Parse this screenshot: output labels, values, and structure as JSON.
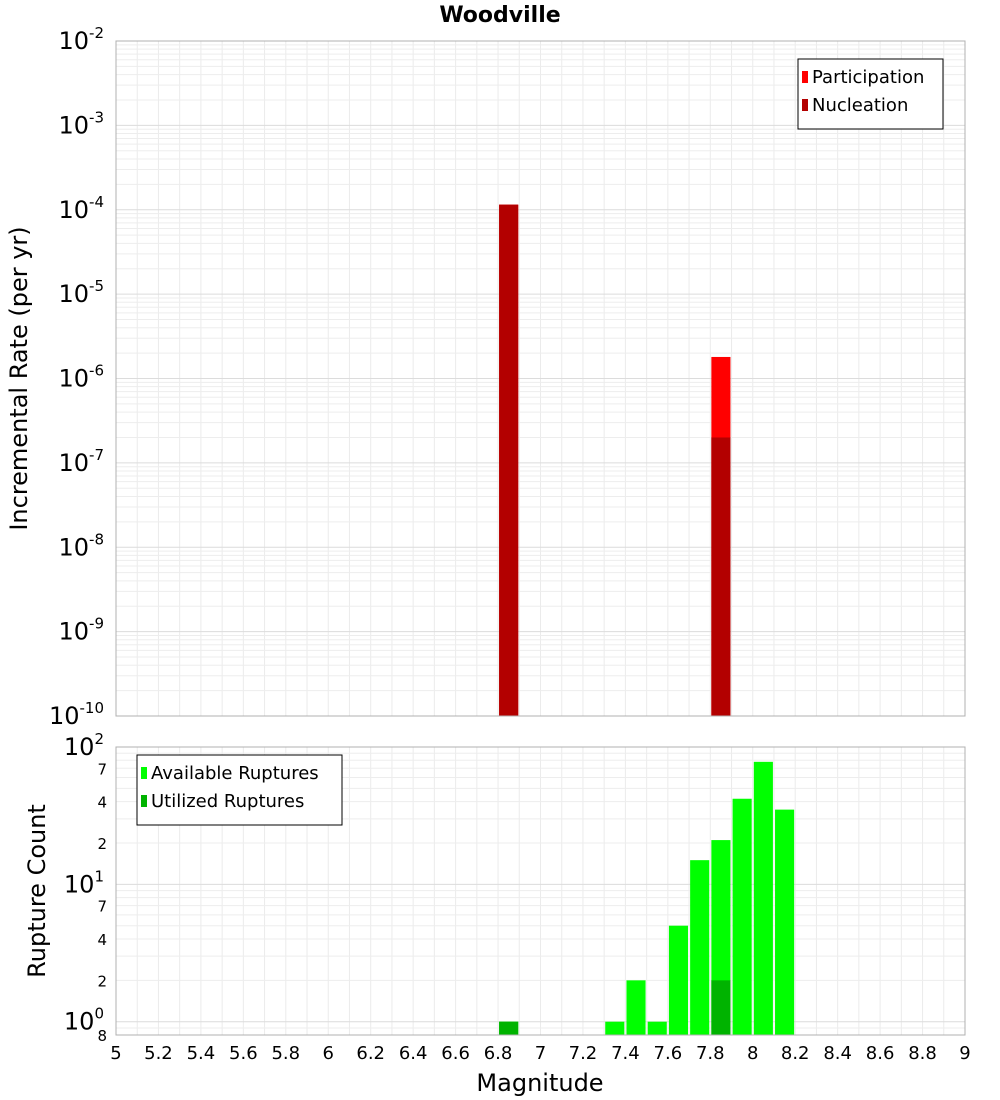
{
  "chart_data": [
    {
      "type": "bar",
      "title": "Woodville",
      "xlabel": "",
      "ylabel": "Incremental Rate (per yr)",
      "yscale": "log",
      "ylim": [
        1e-10,
        0.01
      ],
      "xlim": [
        5,
        9
      ],
      "grid": true,
      "legend_position": "top-right",
      "y_tick_exponents": [
        "-10",
        "-9",
        "-8",
        "-7",
        "-6",
        "-5",
        "-4",
        "-3",
        "-2"
      ],
      "series": [
        {
          "name": "Participation",
          "color": "#ff0000",
          "points": [
            {
              "x": 6.85,
              "y": 0.000115
            },
            {
              "x": 7.85,
              "y": 1.8e-06
            }
          ]
        },
        {
          "name": "Nucleation",
          "color": "#b30000",
          "points": [
            {
              "x": 6.85,
              "y": 0.000115
            },
            {
              "x": 7.85,
              "y": 2e-07
            }
          ]
        }
      ]
    },
    {
      "type": "bar",
      "title": "",
      "xlabel": "Magnitude",
      "ylabel": "Rupture Count",
      "yscale": "log",
      "ylim": [
        0.8,
        100
      ],
      "xlim": [
        5,
        9
      ],
      "grid": true,
      "legend_position": "top-left",
      "x_ticks": [
        "5",
        "5.2",
        "5.4",
        "5.6",
        "5.8",
        "6",
        "6.2",
        "6.4",
        "6.6",
        "6.8",
        "7",
        "7.2",
        "7.4",
        "7.6",
        "7.8",
        "8",
        "8.2",
        "8.4",
        "8.6",
        "8.8",
        "9"
      ],
      "y_decade_ticks": [
        {
          "value": 1,
          "exponent": "0"
        },
        {
          "value": 10,
          "exponent": "1"
        },
        {
          "value": 100,
          "exponent": "2"
        }
      ],
      "y_minor_labels": [
        {
          "value": 0.8,
          "label": "8"
        },
        {
          "value": 2,
          "label": "2"
        },
        {
          "value": 4,
          "label": "4"
        },
        {
          "value": 7,
          "label": "7"
        },
        {
          "value": 20,
          "label": "2"
        },
        {
          "value": 40,
          "label": "4"
        },
        {
          "value": 70,
          "label": "7"
        }
      ],
      "series": [
        {
          "name": "Available Ruptures",
          "color": "#00ff00",
          "points": [
            {
              "x": 6.85,
              "y": 1
            },
            {
              "x": 7.35,
              "y": 1
            },
            {
              "x": 7.45,
              "y": 2
            },
            {
              "x": 7.55,
              "y": 1
            },
            {
              "x": 7.65,
              "y": 5
            },
            {
              "x": 7.75,
              "y": 15
            },
            {
              "x": 7.85,
              "y": 21
            },
            {
              "x": 7.95,
              "y": 42
            },
            {
              "x": 8.05,
              "y": 78
            },
            {
              "x": 8.15,
              "y": 35
            }
          ]
        },
        {
          "name": "Utilized Ruptures",
          "color": "#00b300",
          "points": [
            {
              "x": 6.85,
              "y": 1
            },
            {
              "x": 7.85,
              "y": 2
            }
          ]
        }
      ]
    }
  ]
}
